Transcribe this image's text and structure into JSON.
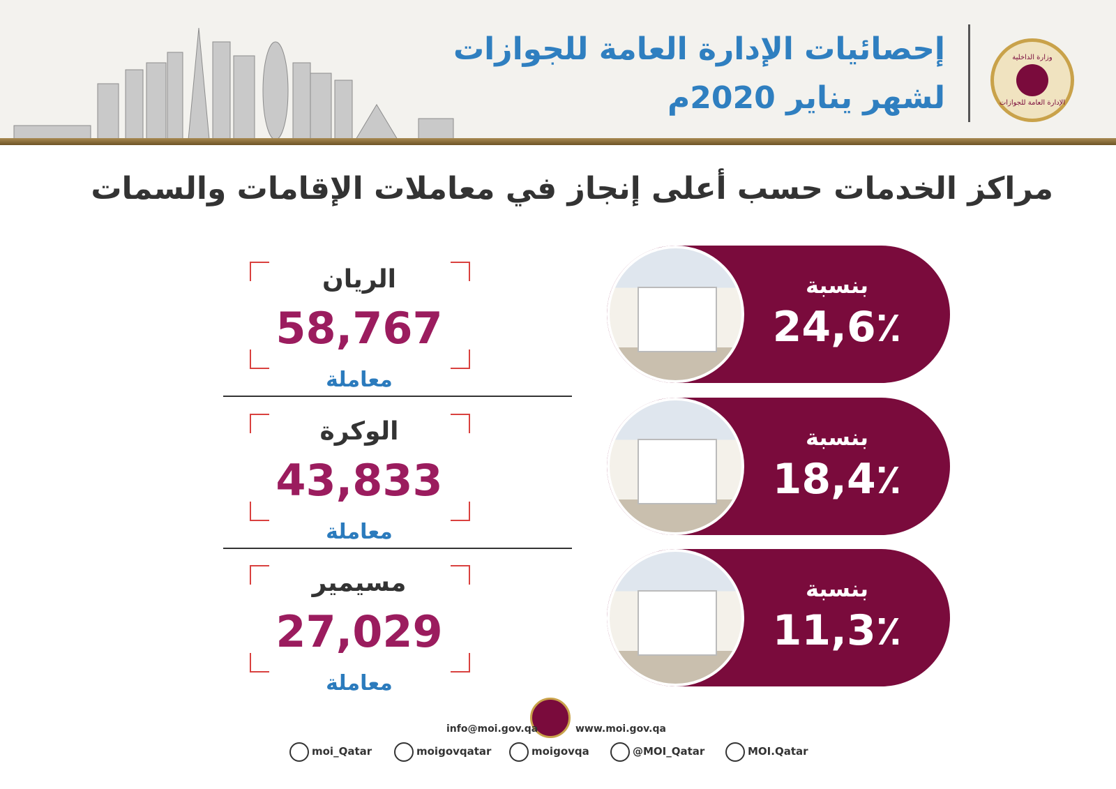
{
  "header": {
    "title_line1": "إحصائيات الإدارة العامة للجوازات",
    "title_line2": "لشهر يناير 2020م",
    "logo_top": "وزارة الداخلية",
    "logo_bottom": "الإدارة العامة للجوازات"
  },
  "heading": "مراكز الخدمات حسب أعلى إنجاز في معاملات الإقامات والسمات",
  "centers": [
    {
      "name": "الريان",
      "count": "58,767",
      "unit": "معاملة",
      "share_label": "بنسبة",
      "share": "24,6٪"
    },
    {
      "name": "الوكرة",
      "count": "43,833",
      "unit": "معاملة",
      "share_label": "بنسبة",
      "share": "18,4٪"
    },
    {
      "name": "مسيمير",
      "count": "27,029",
      "unit": "معاملة",
      "share_label": "بنسبة",
      "share": "11,3٪"
    }
  ],
  "footer": {
    "email": "info@moi.gov.qa",
    "website": "www.moi.gov.qa",
    "social": [
      "moi_Qatar",
      "moigovqatar",
      "moigovqa",
      "@MOI_Qatar",
      "MOI.Qatar"
    ]
  }
}
